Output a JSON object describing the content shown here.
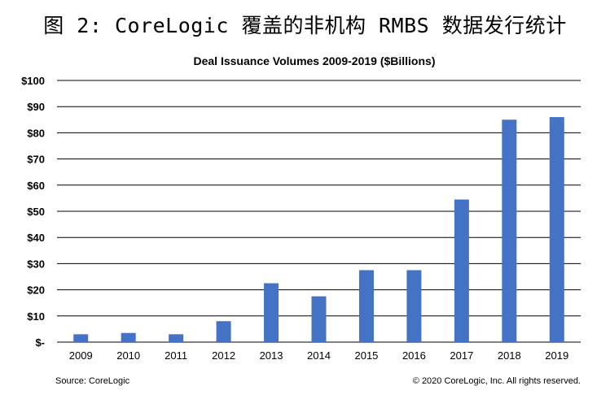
{
  "figure_title": "图 2: CoreLogic 覆盖的非机构 RMBS 数据发行统计",
  "chart_data": {
    "type": "bar",
    "title": "Deal Issuance Volumes 2009-2019 ($Billions)",
    "categories": [
      "2009",
      "2010",
      "2011",
      "2012",
      "2013",
      "2014",
      "2015",
      "2016",
      "2017",
      "2018",
      "2019"
    ],
    "values": [
      3,
      3.5,
      3,
      8,
      22.5,
      17.5,
      27.5,
      27.5,
      54.5,
      85,
      86
    ],
    "ylim": [
      0,
      100
    ],
    "yticks": [
      0,
      10,
      20,
      30,
      40,
      50,
      60,
      70,
      80,
      90,
      100
    ],
    "ytick_labels": [
      "$-",
      "$10",
      "$20",
      "$30",
      "$40",
      "$50",
      "$60",
      "$70",
      "$80",
      "$90",
      "$100"
    ],
    "grid": true,
    "bar_color": "#4472C4",
    "gridline_color": "#000000"
  },
  "footer": {
    "source": "Source: CoreLogic",
    "copyright": "© 2020 CoreLogic, Inc. All rights reserved."
  }
}
